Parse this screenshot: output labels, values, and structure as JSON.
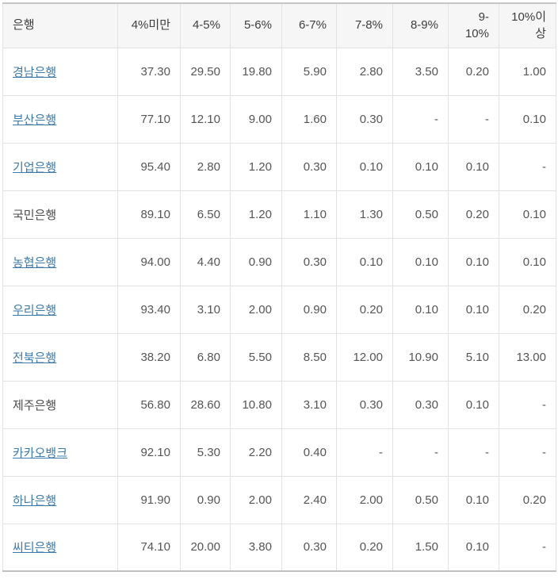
{
  "table": {
    "columns": [
      "은행",
      "4%미만",
      "4-5%",
      "5-6%",
      "6-7%",
      "7-8%",
      "8-9%",
      "9-10%",
      "10%이상"
    ],
    "rows": [
      {
        "bank": "경남은행",
        "is_link": true,
        "values": [
          "37.30",
          "29.50",
          "19.80",
          "5.90",
          "2.80",
          "3.50",
          "0.20",
          "1.00"
        ]
      },
      {
        "bank": "부산은행",
        "is_link": true,
        "values": [
          "77.10",
          "12.10",
          "9.00",
          "1.60",
          "0.30",
          "-",
          "-",
          "0.10"
        ]
      },
      {
        "bank": "기업은행",
        "is_link": true,
        "values": [
          "95.40",
          "2.80",
          "1.20",
          "0.30",
          "0.10",
          "0.10",
          "0.10",
          "-"
        ]
      },
      {
        "bank": "국민은행",
        "is_link": false,
        "values": [
          "89.10",
          "6.50",
          "1.20",
          "1.10",
          "1.30",
          "0.50",
          "0.20",
          "0.10"
        ]
      },
      {
        "bank": "농협은행",
        "is_link": true,
        "values": [
          "94.00",
          "4.40",
          "0.90",
          "0.30",
          "0.10",
          "0.10",
          "0.10",
          "0.10"
        ]
      },
      {
        "bank": "우리은행",
        "is_link": true,
        "values": [
          "93.40",
          "3.10",
          "2.00",
          "0.90",
          "0.20",
          "0.10",
          "0.10",
          "0.20"
        ]
      },
      {
        "bank": "전북은행",
        "is_link": true,
        "values": [
          "38.20",
          "6.80",
          "5.50",
          "8.50",
          "12.00",
          "10.90",
          "5.10",
          "13.00"
        ]
      },
      {
        "bank": "제주은행",
        "is_link": false,
        "values": [
          "56.80",
          "28.60",
          "10.80",
          "3.10",
          "0.30",
          "0.30",
          "0.10",
          "-"
        ]
      },
      {
        "bank": "카카오뱅크",
        "is_link": true,
        "values": [
          "92.10",
          "5.30",
          "2.20",
          "0.40",
          "-",
          "-",
          "-",
          "-"
        ]
      },
      {
        "bank": "하나은행",
        "is_link": true,
        "values": [
          "91.90",
          "0.90",
          "2.00",
          "2.40",
          "2.00",
          "0.50",
          "0.10",
          "0.20"
        ]
      },
      {
        "bank": "씨티은행",
        "is_link": true,
        "values": [
          "74.10",
          "20.00",
          "3.80",
          "0.30",
          "0.20",
          "1.50",
          "0.10",
          "-"
        ]
      }
    ]
  },
  "colors": {
    "link_text": "#3e7aa8",
    "header_background": "#f6f6f7",
    "grid_border": "#e2e2e2",
    "outer_border": "#c6c6c6",
    "number_text": "#555555"
  }
}
